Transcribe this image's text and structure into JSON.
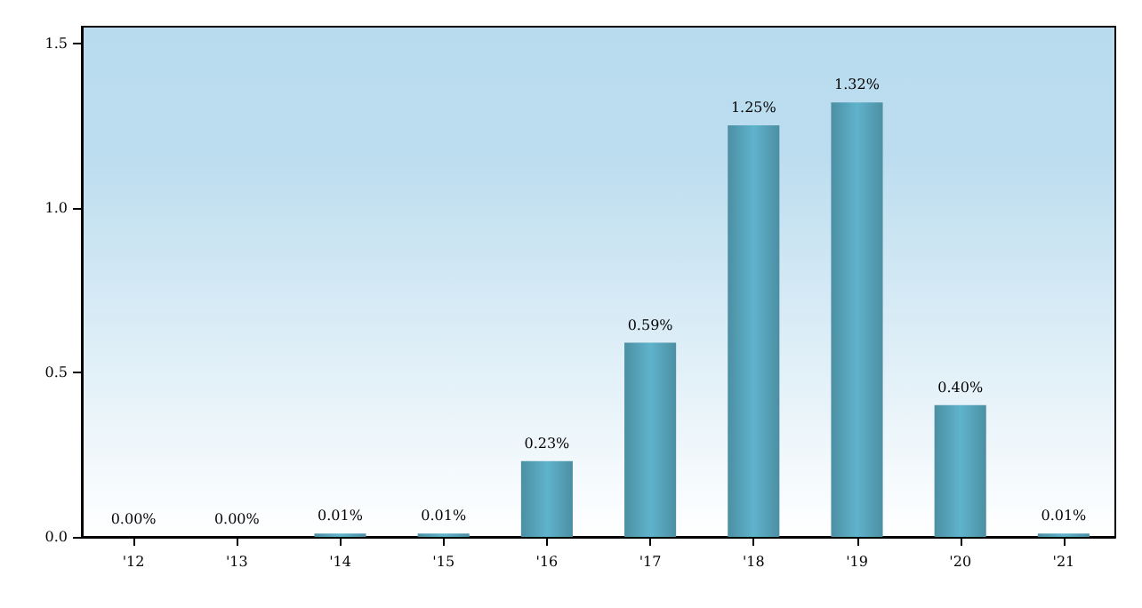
{
  "chart_data": {
    "type": "bar",
    "categories": [
      "'12",
      "'13",
      "'14",
      "'15",
      "'16",
      "'17",
      "'18",
      "'19",
      "'20",
      "'21"
    ],
    "values": [
      0.0,
      0.0,
      0.01,
      0.01,
      0.23,
      0.59,
      1.25,
      1.32,
      0.4,
      0.01
    ],
    "value_labels": [
      "0.00%",
      "0.00%",
      "0.01%",
      "0.01%",
      "0.23%",
      "0.59%",
      "1.25%",
      "1.32%",
      "0.40%",
      "0.01%"
    ],
    "color": "#5fb3cc",
    "ylim": [
      0,
      1.55
    ],
    "yticks": [
      {
        "value": 0,
        "label": "0.0"
      },
      {
        "value": 0.5,
        "label": "0.5"
      },
      {
        "value": 1,
        "label": "1.0"
      },
      {
        "value": 1.5,
        "label": "1.5"
      }
    ],
    "grid": false
  }
}
